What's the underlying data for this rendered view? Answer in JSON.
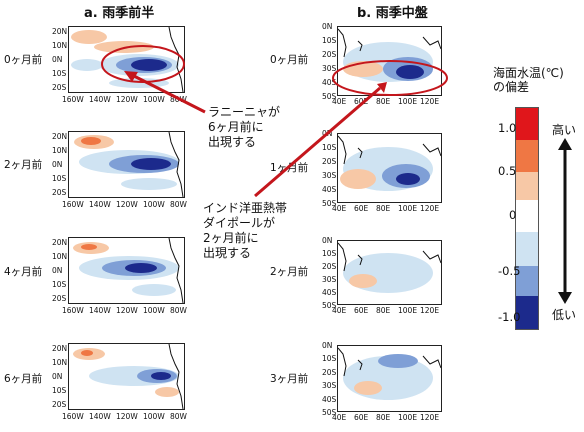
{
  "columns": {
    "a_title": "a. 雨季前半",
    "b_title": "b. 雨季中盤"
  },
  "rows_a": [
    "0ヶ月前",
    "2ヶ月前",
    "4ヶ月前",
    "6ヶ月前"
  ],
  "rows_b": [
    "0ヶ月前",
    "1ヶ月前",
    "2ヶ月前",
    "3ヶ月前"
  ],
  "pacific_axes": {
    "lat_ticks": [
      "20N",
      "10N",
      "0N",
      "10S",
      "20S"
    ],
    "lon_ticks": [
      "160W",
      "140W",
      "120W",
      "100W",
      "80W"
    ]
  },
  "indian_axes": {
    "lat_ticks": [
      "0N",
      "10S",
      "20S",
      "30S",
      "40S",
      "50S"
    ],
    "lon_ticks": [
      "40E",
      "60E",
      "80E",
      "100E",
      "120E"
    ]
  },
  "annotations": {
    "la_nina": [
      "ラニーニャが",
      "6ヶ月前に",
      "出現する"
    ],
    "iod": [
      "インド洋亜熱帯",
      "ダイポールが",
      "2ヶ月前に",
      "出現する"
    ]
  },
  "legend": {
    "title_line1": "海面水温(℃)",
    "title_line2": "の偏差",
    "values": [
      "1.0",
      "0.5",
      "0",
      "-0.5",
      "-1.0"
    ],
    "high_label": "高い",
    "low_label": "低い",
    "colors": [
      "#e0161b",
      "#ef7744",
      "#f7c8a6",
      "#ffffff",
      "#cfe3f2",
      "#7f9fd6",
      "#1c2a8c"
    ]
  }
}
